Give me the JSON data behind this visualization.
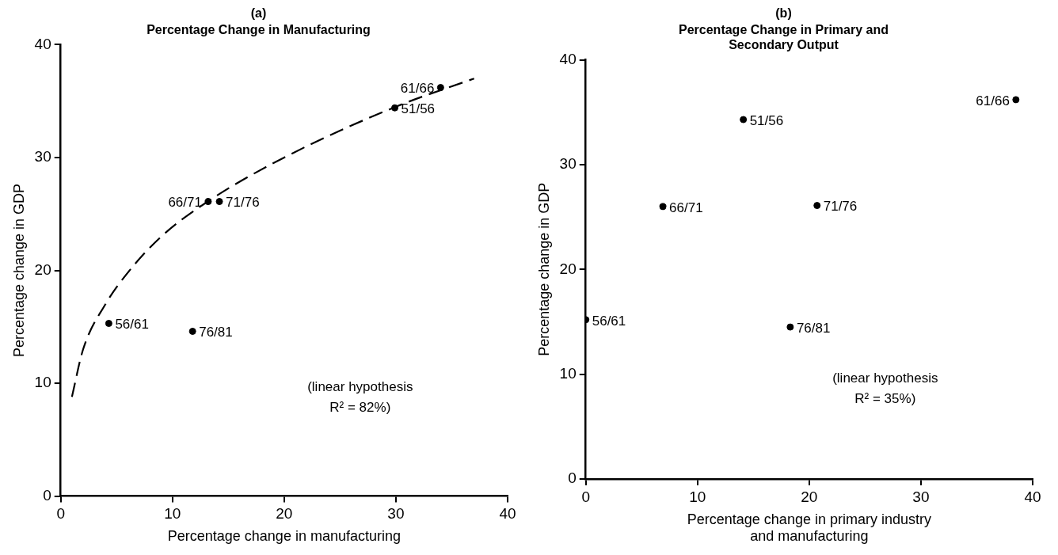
{
  "chart_data": [
    {
      "type": "scatter",
      "title": "(a)",
      "subtitle": "Percentage Change in Manufacturing",
      "xlabel": "Percentage change in manufacturing",
      "ylabel": "Percentage change in GDP",
      "series": [
        {
          "color": "#000000",
          "marker": "circle",
          "x": [
            4.3,
            11.8,
            13.2,
            14.2,
            29.9,
            34.0
          ],
          "values": [
            15.3,
            14.6,
            26.1,
            26.1,
            34.4,
            36.2
          ]
        },
        {
          "type": "line",
          "color": "#000000",
          "marker": "none",
          "line_style": "dashed",
          "x": [
            1,
            2,
            4,
            6,
            9,
            13,
            20,
            30,
            37
          ],
          "values": [
            8.8,
            13,
            17,
            19.8,
            23,
            26,
            30,
            34.5,
            37
          ]
        }
      ],
      "annotations": [
        {
          "text": "56/61",
          "x": 4.3,
          "y": 15.3
        },
        {
          "text": "76/81",
          "x": 11.8,
          "y": 14.6
        },
        {
          "text": "66/71",
          "x": 13.2,
          "y": 26.1
        },
        {
          "text": "71/76",
          "x": 14.2,
          "y": 26.1
        },
        {
          "text": "51/56",
          "x": 29.9,
          "y": 34.4
        },
        {
          "text": "61/66",
          "x": 34.0,
          "y": 36.2
        },
        "(linear hypothesis\nR² = 82%)"
      ],
      "xlim": [
        0,
        40
      ],
      "xticks": [
        0,
        10,
        20,
        30,
        40
      ],
      "ylim": [
        0,
        40
      ],
      "yticks": [
        0,
        10,
        20,
        30,
        40
      ],
      "grid": false,
      "legend": false
    },
    {
      "type": "scatter",
      "title": "(b)",
      "subtitle": "Percentage Change in Primary and\nSecondary Output",
      "xlabel": "Percentage change in primary industry\nand manufacturing",
      "ylabel": "Percentage change in GDP",
      "series": [
        {
          "color": "#000000",
          "marker": "circle",
          "x": [
            0,
            18.3,
            6.9,
            20.7,
            14.1,
            38.5
          ],
          "values": [
            15.2,
            14.5,
            26.0,
            26.1,
            34.3,
            36.2
          ]
        }
      ],
      "annotations": [
        {
          "text": "56/61",
          "x": 0,
          "y": 15.2
        },
        {
          "text": "76/81",
          "x": 18.3,
          "y": 14.5
        },
        {
          "text": "66/71",
          "x": 6.9,
          "y": 26.0
        },
        {
          "text": "71/76",
          "x": 20.7,
          "y": 26.1
        },
        {
          "text": "51/56",
          "x": 14.1,
          "y": 34.3
        },
        {
          "text": "61/66",
          "x": 38.5,
          "y": 36.2
        },
        "(linear hypothesis\nR² = 35%)"
      ],
      "xlim": [
        0,
        40
      ],
      "xticks": [
        0,
        10,
        20,
        30,
        40
      ],
      "ylim": [
        0,
        40
      ],
      "yticks": [
        0,
        10,
        20,
        30,
        40
      ],
      "grid": false,
      "legend": false
    }
  ]
}
